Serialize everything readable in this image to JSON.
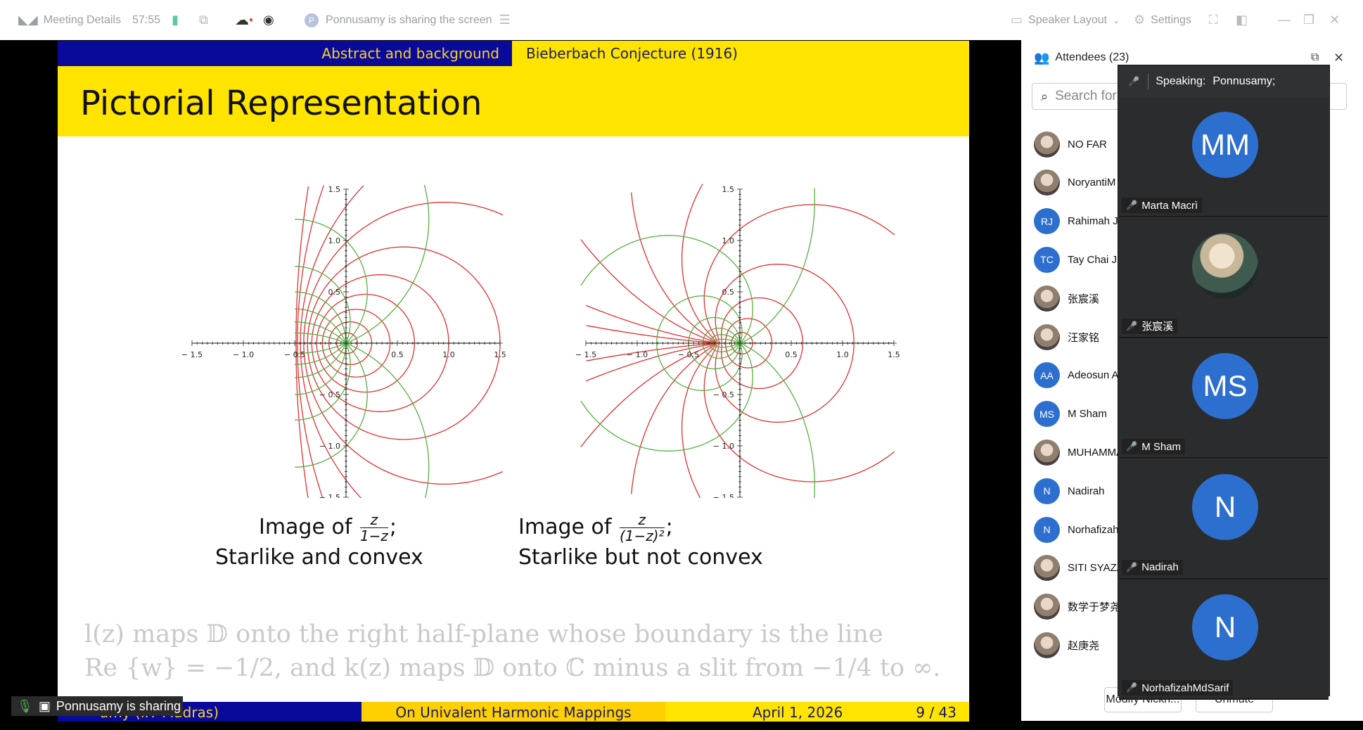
{
  "topbar": {
    "meeting_details": "Meeting Details",
    "timer": "57:55",
    "sharing_status": "Ponnusamy is sharing the screen",
    "sharer_initial": "P",
    "layout": "Speaker Layout",
    "settings": "Settings"
  },
  "slide": {
    "banner_left": "Abstract and background",
    "banner_right": "Bieberbach Conjecture (1916)",
    "title": "Pictorial Representation",
    "caption_left": {
      "prefix": "Image of",
      "num": "z",
      "den": "1−z",
      "suffix": ";",
      "line2": "Starlike and convex"
    },
    "caption_right": {
      "prefix": "Image of",
      "num": "z",
      "den": "(1−z)²",
      "suffix": ";",
      "line2": "Starlike but not convex"
    },
    "faded_line1": "l(z) maps 𝔻 onto the right half-plane whose boundary is the line",
    "faded_line2": "Re {w} = −1/2, and k(z) maps 𝔻 onto ℂ minus a slit from −1/4 to ∞.",
    "footer_author": "amy  (IIT Madras)",
    "footer_title": "On Univalent Harmonic Mappings",
    "footer_date": "April 1, 2026",
    "footer_page": "9 / 43"
  },
  "chart_data": [
    {
      "type": "line",
      "title": "",
      "xlim": [
        -1.5,
        1.5
      ],
      "ylim": [
        -1.5,
        1.5
      ],
      "xticks": [
        "− 1.5",
        "− 1.0",
        "− 0.5",
        "0.5",
        "1.0",
        "1.5"
      ],
      "yticks": [
        "1.5",
        "1.0",
        "0.5",
        "− 0.5",
        "− 1.0",
        "− 1.5"
      ],
      "series": [
        {
          "color": "#e03030",
          "values": []
        },
        {
          "color": "#55b040",
          "values": []
        }
      ]
    },
    {
      "type": "line",
      "title": "",
      "xlim": [
        -1.5,
        1.5
      ],
      "ylim": [
        -1.5,
        1.5
      ],
      "xticks": [
        "− 1.5",
        "− 1.0",
        "− 0.5",
        "0.5",
        "1.0",
        "1.5"
      ],
      "yticks": [
        "1.5",
        "1.0",
        "0.5",
        "− 0.5",
        "− 1.0",
        "− 1.5"
      ],
      "series": [
        {
          "color": "#e03030",
          "values": []
        },
        {
          "color": "#55b040",
          "values": []
        }
      ]
    }
  ],
  "sharing_toast": "Ponnusamy is sharing",
  "panel": {
    "title": "Attendees (23)",
    "search_placeholder": "Search for",
    "attendees": [
      {
        "initials": "",
        "name": "NO FAR"
      },
      {
        "initials": "",
        "name": "NoryantiM"
      },
      {
        "initials": "RJ",
        "name": "Rahimah Ju"
      },
      {
        "initials": "TC",
        "name": "Tay Chai Jia"
      },
      {
        "initials": "",
        "name": "张宸溪"
      },
      {
        "initials": "",
        "name": "汪家铭"
      },
      {
        "initials": "AA",
        "name": "Adeosun A"
      },
      {
        "initials": "MS",
        "name": "M Sham"
      },
      {
        "initials": "",
        "name": "MUHAMMA"
      },
      {
        "initials": "N",
        "name": "Nadirah"
      },
      {
        "initials": "N",
        "name": "Norhafizah"
      },
      {
        "initials": "",
        "name": "SITI SYAZA"
      },
      {
        "initials": "",
        "name": "数学于梦尧"
      },
      {
        "initials": "",
        "name": "赵庚尧"
      }
    ],
    "modify_button": "Modify Nickn...",
    "unmute_button": "Unmute"
  },
  "speaker": {
    "label": "Speaking:",
    "name": "Ponnusamy;",
    "tiles": [
      {
        "initials": "MM",
        "name": "Marta Macrì"
      },
      {
        "initials": "",
        "name": "张宸溪"
      },
      {
        "initials": "MS",
        "name": "M Sham"
      },
      {
        "initials": "N",
        "name": "Nadirah"
      },
      {
        "initials": "N",
        "name": "NorhafizahMdSarif"
      }
    ]
  }
}
